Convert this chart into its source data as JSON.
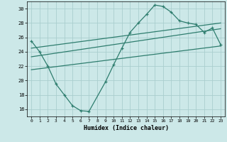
{
  "title": "",
  "xlabel": "Humidex (Indice chaleur)",
  "xlim": [
    -0.5,
    23.5
  ],
  "ylim": [
    15,
    31
  ],
  "yticks": [
    16,
    18,
    20,
    22,
    24,
    26,
    28,
    30
  ],
  "xticks": [
    0,
    1,
    2,
    3,
    4,
    5,
    6,
    7,
    8,
    9,
    10,
    11,
    12,
    13,
    14,
    15,
    16,
    17,
    18,
    19,
    20,
    21,
    22,
    23
  ],
  "main_line_x": [
    0,
    1,
    2,
    3,
    4,
    5,
    6,
    7,
    9,
    10,
    11,
    12,
    13,
    14,
    15,
    16,
    17,
    18,
    19,
    20,
    21,
    22,
    23
  ],
  "main_line_y": [
    25.5,
    24.0,
    22.0,
    19.5,
    18.0,
    16.5,
    15.8,
    15.7,
    19.8,
    22.2,
    24.5,
    26.7,
    28.0,
    29.2,
    30.5,
    30.3,
    29.5,
    28.3,
    28.0,
    27.8,
    26.7,
    27.3,
    25.0
  ],
  "reg_line1_x": [
    0,
    23
  ],
  "reg_line1_y": [
    24.5,
    28.0
  ],
  "reg_line2_x": [
    0,
    23
  ],
  "reg_line2_y": [
    23.3,
    27.2
  ],
  "reg_line3_x": [
    0,
    23
  ],
  "reg_line3_y": [
    21.5,
    24.8
  ],
  "line_color": "#2e7d6e",
  "bg_color": "#cce8e8",
  "grid_color": "#aacece"
}
